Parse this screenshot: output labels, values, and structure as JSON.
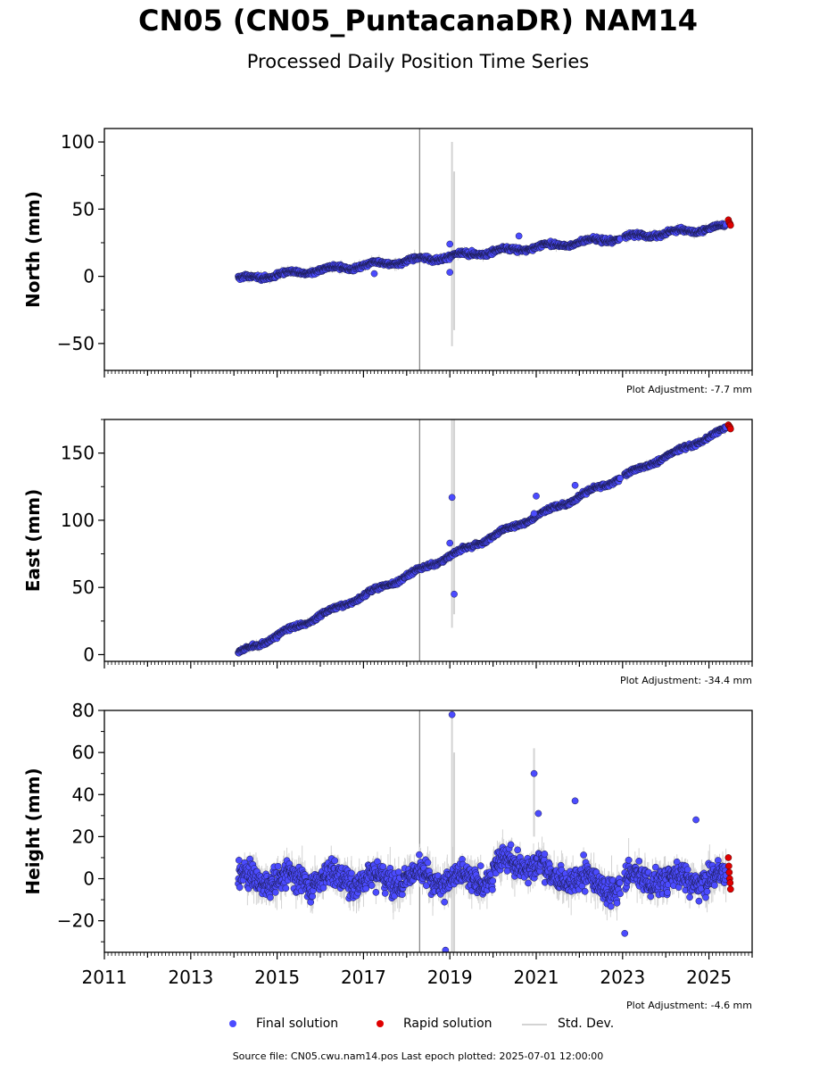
{
  "title": "CN05 (CN05_PuntacanaDR) NAM14",
  "subtitle": "Processed Daily Position Time Series",
  "legend": {
    "final": "Final solution",
    "rapid": "Rapid solution",
    "std": "Std. Dev."
  },
  "footer": "Source file: CN05.cwu.nam14.pos  Last epoch plotted: 2025-07-01 12:00:00",
  "colors": {
    "final": "#4b4bff",
    "rapid": "#e00000",
    "std": "#d3d3d3",
    "event_line": "#808080"
  },
  "chart_data": [
    {
      "type": "scatter",
      "ylabel": "North (mm)",
      "plot_adjustment": "Plot Adjustment: -7.7 mm",
      "xlim": [
        2011.0,
        2026.0
      ],
      "ylim": [
        -70,
        110
      ],
      "yticks": [
        -50,
        0,
        50,
        100
      ],
      "ytick_labels": [
        "−50",
        "0",
        "50",
        "100"
      ],
      "event_line_x": 2018.3,
      "final_trend": {
        "x_start": 2014.1,
        "x_end": 2025.4,
        "y_start": -2,
        "y_end": 37,
        "scatter": 2.0,
        "seasonal_amp": 1.5
      },
      "rapid_points": [
        {
          "x": 2025.45,
          "y": 42
        },
        {
          "x": 2025.47,
          "y": 40
        },
        {
          "x": 2025.49,
          "y": 39
        },
        {
          "x": 2025.5,
          "y": 38
        }
      ],
      "outliers": [
        {
          "x": 2019.0,
          "y": 24,
          "std": 1
        },
        {
          "x": 2019.0,
          "y": 3,
          "std": 1
        },
        {
          "x": 2020.6,
          "y": 30,
          "std": 1
        },
        {
          "x": 2017.25,
          "y": 2,
          "std": 1
        }
      ],
      "std_spikes": [
        {
          "x": 2019.05,
          "lo": -52,
          "hi": 100
        },
        {
          "x": 2019.1,
          "lo": -40,
          "hi": 78
        }
      ]
    },
    {
      "type": "scatter",
      "ylabel": "East (mm)",
      "plot_adjustment": "Plot Adjustment: -34.4 mm",
      "xlim": [
        2011.0,
        2026.0
      ],
      "ylim": [
        -5,
        175
      ],
      "yticks": [
        0,
        50,
        100,
        150
      ],
      "ytick_labels": [
        "0",
        "50",
        "100",
        "150"
      ],
      "event_line_x": 2018.3,
      "final_trend": {
        "x_start": 2014.1,
        "x_end": 2025.4,
        "y_start": 1,
        "y_end": 168,
        "scatter": 1.8,
        "seasonal_amp": 1.2
      },
      "rapid_points": [
        {
          "x": 2025.45,
          "y": 171
        },
        {
          "x": 2025.47,
          "y": 170
        },
        {
          "x": 2025.49,
          "y": 169
        },
        {
          "x": 2025.5,
          "y": 168
        }
      ],
      "outliers": [
        {
          "x": 2019.05,
          "y": 117,
          "std": 1
        },
        {
          "x": 2019.1,
          "y": 45,
          "std": 1
        },
        {
          "x": 2019.0,
          "y": 83,
          "std": 1
        },
        {
          "x": 2021.0,
          "y": 118,
          "std": 1
        },
        {
          "x": 2021.9,
          "y": 126,
          "std": 1
        },
        {
          "x": 2020.95,
          "y": 105,
          "std": 1
        }
      ],
      "std_spikes": [
        {
          "x": 2019.05,
          "lo": 20,
          "hi": 175
        },
        {
          "x": 2019.1,
          "lo": 30,
          "hi": 175
        }
      ]
    },
    {
      "type": "scatter",
      "ylabel": "Height (mm)",
      "plot_adjustment": "Plot Adjustment: -4.6 mm",
      "xlim": [
        2011.0,
        2026.0
      ],
      "ylim": [
        -35,
        80
      ],
      "yticks": [
        -20,
        0,
        20,
        40,
        60,
        80
      ],
      "ytick_labels": [
        "−20",
        "0",
        "20",
        "40",
        "60",
        "80"
      ],
      "xticks": [
        2011,
        2013,
        2015,
        2017,
        2019,
        2021,
        2023,
        2025
      ],
      "xtick_labels": [
        "2011",
        "2013",
        "2015",
        "2017",
        "2019",
        "2021",
        "2023",
        "2025"
      ],
      "event_line_x": 2018.3,
      "final_trend": {
        "x_start": 2014.1,
        "x_end": 2025.4,
        "y_start": 0,
        "y_end": 0,
        "scatter": 7.0,
        "seasonal_amp": 3.0
      },
      "rapid_points": [
        {
          "x": 2025.45,
          "y": 10
        },
        {
          "x": 2025.46,
          "y": 6
        },
        {
          "x": 2025.47,
          "y": 3
        },
        {
          "x": 2025.48,
          "y": 0
        },
        {
          "x": 2025.49,
          "y": -2
        },
        {
          "x": 2025.5,
          "y": -5
        }
      ],
      "outliers": [
        {
          "x": 2019.05,
          "y": 78,
          "std": 1
        },
        {
          "x": 2020.95,
          "y": 50,
          "std": 1
        },
        {
          "x": 2018.9,
          "y": -34,
          "std": 1
        },
        {
          "x": 2021.05,
          "y": 31,
          "std": 1
        },
        {
          "x": 2021.9,
          "y": 37,
          "std": 1
        },
        {
          "x": 2024.7,
          "y": 28,
          "std": 1
        },
        {
          "x": 2023.05,
          "y": -26,
          "std": 1
        }
      ],
      "std_spikes": [
        {
          "x": 2019.05,
          "lo": -35,
          "hi": 80
        },
        {
          "x": 2019.1,
          "lo": -35,
          "hi": 60
        },
        {
          "x": 2020.95,
          "lo": 20,
          "hi": 62
        }
      ]
    }
  ]
}
